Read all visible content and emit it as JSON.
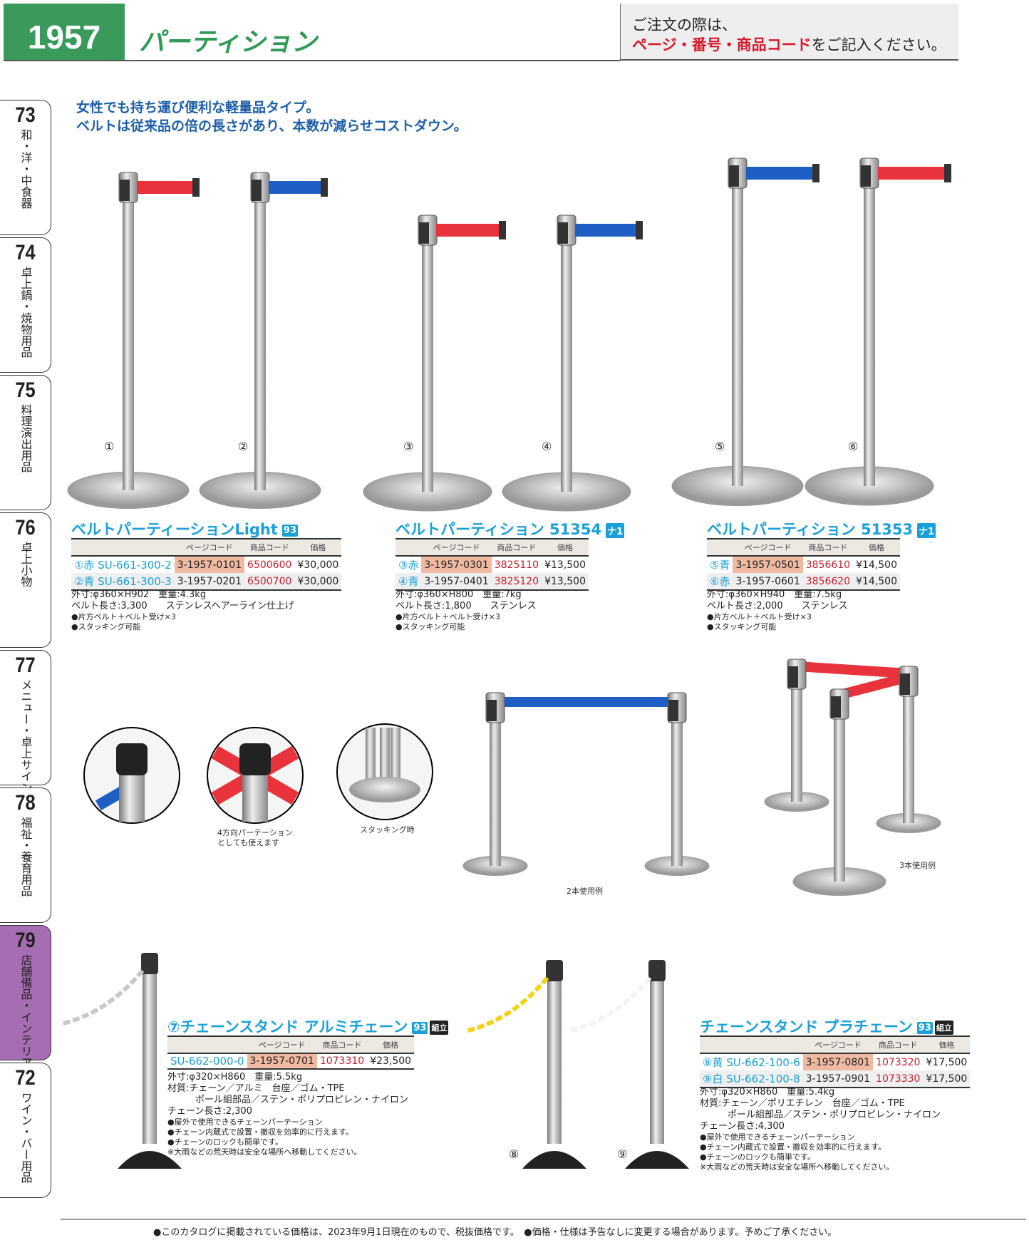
{
  "header": {
    "page_number": "1957",
    "category_title": "パーティション",
    "notice_line1": "ご注文の際は、",
    "notice_highlight": "ページ・番号・商品コード",
    "notice_rest": "をご記入ください。"
  },
  "intro": [
    "女性でも持ち運び便利な軽量品タイプ。",
    "ベルトは従来品の倍の長さがあり、本数が減らせコストダウン。"
  ],
  "side_tabs": [
    {
      "number": "73",
      "label": "和・洋・中食器"
    },
    {
      "number": "74",
      "label": "卓上鍋・焼物用品"
    },
    {
      "number": "75",
      "label": "料理演出用品"
    },
    {
      "number": "76",
      "label": "卓上小物"
    },
    {
      "number": "77",
      "label": "メニュー・卓上サイン"
    },
    {
      "number": "78",
      "label": "福祉・養育用品"
    },
    {
      "number": "79",
      "label": "店舗備品・インテリア",
      "active": true,
      "color": "#a76db3"
    },
    {
      "number": "72",
      "label": "ワイン・バー用品"
    }
  ],
  "table_headers": {
    "page_code": "ページコード",
    "item_code": "商品コード",
    "price": "価格"
  },
  "products": [
    {
      "title": "ベルトパーティーションLight",
      "badge": "93",
      "rows": [
        {
          "label": "①赤 SU-661-300-2",
          "page_code": "3-1957-0101",
          "item_code": "6500600",
          "price": "¥30,000"
        },
        {
          "label": "②青 SU-661-300-3",
          "page_code": "3-1957-0201",
          "item_code": "6500700",
          "price": "¥30,000"
        }
      ],
      "spec": [
        "外寸:φ360×H902　重量:4.3kg",
        "ベルト長さ:3,300　　ステンレスヘアーライン仕上げ"
      ],
      "notes": [
        "●片方ベルト＋ベルト受け×3",
        "●スタッキング可能"
      ]
    },
    {
      "title": "ベルトパーティション 51354",
      "badge": "ナ1",
      "rows": [
        {
          "label": "③赤",
          "page_code": "3-1957-0301",
          "item_code": "3825110",
          "price": "¥13,500"
        },
        {
          "label": "④青",
          "page_code": "3-1957-0401",
          "item_code": "3825120",
          "price": "¥13,500"
        }
      ],
      "spec": [
        "外寸:φ360×H800　重量:7kg",
        "ベルト長さ:1,800　　ステンレス"
      ],
      "notes": [
        "●片方ベルト＋ベルト受け×3",
        "●スタッキング可能"
      ]
    },
    {
      "title": "ベルトパーティション 51353",
      "badge": "ナ1",
      "rows": [
        {
          "label": "⑤青",
          "page_code": "3-1957-0501",
          "item_code": "3856610",
          "price": "¥14,500"
        },
        {
          "label": "⑥赤",
          "page_code": "3-1957-0601",
          "item_code": "3856620",
          "price": "¥14,500"
        }
      ],
      "spec": [
        "外寸:φ360×H940　重量:7.5kg",
        "ベルト長さ:2,000　　ステンレス"
      ],
      "notes": [
        "●片方ベルト＋ベルト受け×3",
        "●スタッキング可能"
      ]
    },
    {
      "title": "⑦チェーンスタンド アルミチェーン",
      "badge": "93",
      "kit": "組立",
      "rows": [
        {
          "label": "SU-662-000-0",
          "page_code": "3-1957-0701",
          "item_code": "1073310",
          "price": "¥23,500"
        }
      ],
      "spec": [
        "外寸:φ320×H860　重量:5.5kg",
        "材質:チェーン／アルミ　台座／ゴム・TPE",
        "　　　ポール組部品／ステン・ポリプロピレン・ナイロン",
        "チェーン長さ:2,300"
      ],
      "notes": [
        "●屋外で使用できるチェーンパーテーション",
        "●チェーン内蔵式で設置・撤収を効率的に行えます。",
        "●チェーンのロックも簡単です。",
        "※大雨などの荒天時は安全な場所へ移動してください。"
      ]
    },
    {
      "title": "チェーンスタンド プラチェーン",
      "badge": "93",
      "kit": "組立",
      "rows": [
        {
          "label": "⑧黄 SU-662-100-6",
          "page_code": "3-1957-0801",
          "item_code": "1073320",
          "price": "¥17,500"
        },
        {
          "label": "⑨白 SU-662-100-8",
          "page_code": "3-1957-0901",
          "item_code": "1073330",
          "price": "¥17,500"
        }
      ],
      "spec": [
        "外寸:φ320×H860　重量:5.4kg",
        "材質:チェーン／ポリエチレン　台座／ゴム・TPE",
        "　　　ポール組部品／ステン・ポリプロピレン・ナイロン",
        "チェーン長さ:4,300"
      ],
      "notes": [
        "●屋外で使用できるチェーンパーテーション",
        "●チェーン内蔵式で設置・撤収を効率的に行えます。",
        "●チェーンのロックも簡単です。",
        "※大雨などの荒天時は安全な場所へ移動してください。"
      ]
    }
  ],
  "image_labels": [
    "①",
    "②",
    "③",
    "④",
    "⑤",
    "⑥",
    "⑧",
    "⑨"
  ],
  "captions": {
    "four_way": "4方向パーテーション\nとしても使えます",
    "stacking": "スタッキング時",
    "two_pole": "2本使用例",
    "three_pole": "3本使用例"
  },
  "colors": {
    "accent": "#1aa0d8",
    "brand_green": "#3a9a5c",
    "belt_red": "#e8323c",
    "belt_blue": "#1f5fc4",
    "chain_yellow": "#f2d21b"
  },
  "footer": "●このカタログに掲載されている価格は、2023年9月1日現在のもので、税抜価格です。　●価格・仕様は予告なしに変更する場合があります。予めご了承ください。"
}
